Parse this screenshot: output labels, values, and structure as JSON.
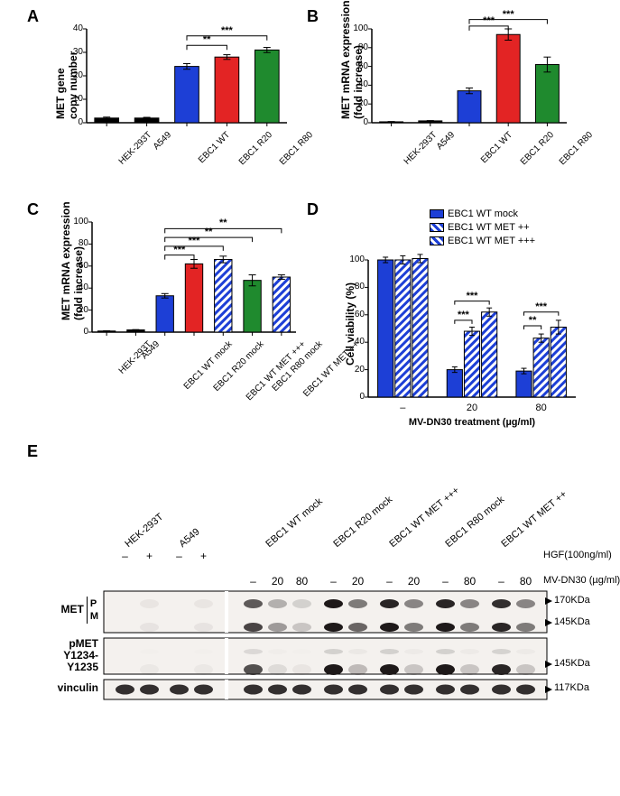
{
  "labels": {
    "A": "A",
    "B": "B",
    "C": "C",
    "D": "D",
    "E": "E"
  },
  "colors": {
    "black": "#000000",
    "blue": "#1d3fd6",
    "red": "#e32424",
    "green": "#1f8a2e",
    "white": "#ffffff",
    "hatchStroke": "#ffffff"
  },
  "panelA": {
    "ylabel": "MET gene\ncopy number",
    "ylim": [
      0,
      40
    ],
    "yticks": [
      0,
      10,
      20,
      30,
      40
    ],
    "categories": [
      "HEK-293T",
      "A549",
      "EBC1 WT",
      "EBC1 R20",
      "EBC1 R80"
    ],
    "values": [
      2,
      2,
      24,
      28,
      31
    ],
    "err": [
      0.4,
      0.3,
      1.2,
      1.0,
      1.1
    ],
    "barColors": [
      "#000000",
      "#000000",
      "#1d3fd6",
      "#e32424",
      "#1f8a2e"
    ],
    "sig": [
      {
        "from": 2,
        "to": 3,
        "text": "**",
        "y": 33
      },
      {
        "from": 2,
        "to": 4,
        "text": "***",
        "y": 37
      }
    ]
  },
  "panelB": {
    "ylabel": "MET mRNA expression\n(fold increase)",
    "ylim": [
      0,
      100
    ],
    "yticks": [
      0,
      20,
      40,
      60,
      80,
      100
    ],
    "categories": [
      "HEK-293T",
      "A549",
      "EBC1 WT",
      "EBC1 R20",
      "EBC1 R80"
    ],
    "values": [
      1,
      2,
      34,
      94,
      62
    ],
    "err": [
      0.3,
      0.3,
      3,
      6,
      8
    ],
    "barColors": [
      "#000000",
      "#000000",
      "#1d3fd6",
      "#e32424",
      "#1f8a2e"
    ],
    "sig": [
      {
        "from": 2,
        "to": 3,
        "text": "***",
        "y": 103
      },
      {
        "from": 2,
        "to": 4,
        "text": "***",
        "y": 110
      }
    ]
  },
  "panelC": {
    "ylabel": "MET mRNA expression\n(fold increase)",
    "ylim": [
      0,
      100
    ],
    "yticks": [
      0,
      20,
      40,
      60,
      80,
      100
    ],
    "categories": [
      "HEK-293T",
      "A549",
      "EBC1 WT mock",
      "EBC1 R20 mock",
      "EBC1 WT MET +++",
      "EBC1 R80 mock",
      "EBC1 WT MET ++"
    ],
    "values": [
      1,
      2,
      33,
      62,
      66,
      47,
      50
    ],
    "err": [
      0.2,
      0.3,
      2,
      4,
      3,
      5,
      2
    ],
    "barColors": [
      "#000000",
      "#000000",
      "#1d3fd6",
      "#e32424",
      "#1d3fd6",
      "#1f8a2e",
      "#1d3fd6"
    ],
    "hatched": [
      false,
      false,
      false,
      false,
      true,
      false,
      true
    ],
    "sig": [
      {
        "from": 2,
        "to": 3,
        "text": "***",
        "y": 70
      },
      {
        "from": 2,
        "to": 4,
        "text": "***",
        "y": 78
      },
      {
        "from": 2,
        "to": 5,
        "text": "**",
        "y": 86
      },
      {
        "from": 2,
        "to": 6,
        "text": "**",
        "y": 94
      }
    ]
  },
  "panelD": {
    "ylabel": "Cell viability (%)",
    "xlabel": "MV-DN30 treatment (µg/ml)",
    "ylim": [
      0,
      100
    ],
    "yticks": [
      0,
      20,
      40,
      60,
      80,
      100
    ],
    "groups": [
      "–",
      "20",
      "80"
    ],
    "series": [
      {
        "name": "EBC1 WT mock",
        "color": "#1d3fd6",
        "hatched": false,
        "values": [
          100,
          20,
          19
        ],
        "err": [
          2,
          2,
          2
        ]
      },
      {
        "name": "EBC1 WT MET ++",
        "color": "#1d3fd6",
        "hatched": true,
        "values": [
          100,
          48,
          43
        ],
        "err": [
          3,
          3,
          3
        ]
      },
      {
        "name": "EBC1 WT MET +++",
        "color": "#1d3fd6",
        "hatched": true,
        "values": [
          101,
          62,
          51
        ],
        "err": [
          3,
          3,
          5
        ]
      }
    ],
    "sig": [
      {
        "group": 1,
        "a": 0,
        "b": 1,
        "text": "***",
        "y": 56
      },
      {
        "group": 1,
        "a": 0,
        "b": 2,
        "text": "***",
        "y": 70
      },
      {
        "group": 2,
        "a": 0,
        "b": 1,
        "text": "**",
        "y": 52
      },
      {
        "group": 2,
        "a": 0,
        "b": 2,
        "text": "***",
        "y": 62
      }
    ]
  },
  "panelE": {
    "left_labels": {
      "met": "MET",
      "met_p": "P",
      "met_m": "M",
      "pmet": "pMET\nY1234-\nY1235",
      "vinculin": "vinculin"
    },
    "mw": {
      "p": "170KDa",
      "m": "145KDa",
      "pm": "145KDa",
      "v": "117KDa"
    },
    "lane_groups": [
      "HEK-293T",
      "A549",
      "EBC1 WT mock",
      "EBC1 R20 mock",
      "EBC1 WT MET +++",
      "EBC1 R80 mock",
      "EBC1 WT MET ++"
    ],
    "hgf_row_label": "HGF(100ng/ml)",
    "mv_row_label": "MV-DN30 (µg/ml)",
    "mv_row": [
      "–",
      "20",
      "80",
      "–",
      "20",
      "–",
      "20",
      "–",
      "80",
      "–",
      "80"
    ],
    "hgf_row": [
      "–",
      "+",
      "–",
      "+"
    ]
  }
}
